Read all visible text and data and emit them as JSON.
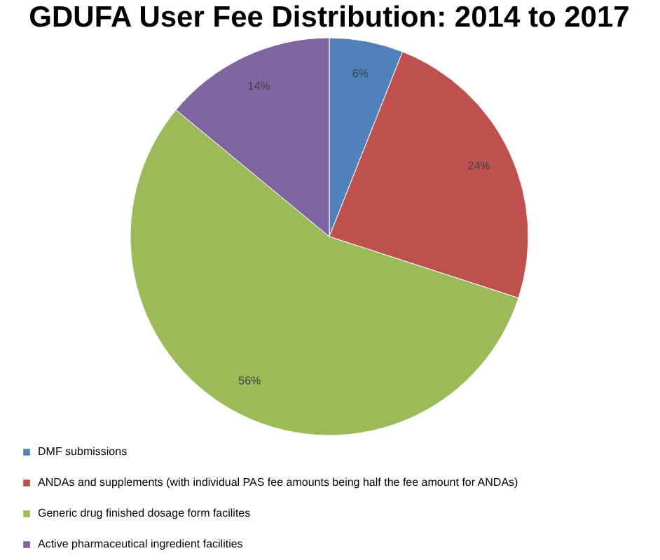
{
  "chart_data": {
    "type": "pie",
    "title": "GDUFA User Fee Distribution: 2014 to 2017",
    "categories": [
      "DMF submissions",
      "ANDAs and supplements (with individual PAS fee amounts being half the fee amount for ANDAs)",
      "Generic drug finished dosage form facilites",
      "Active pharmaceutical ingredient facilities"
    ],
    "values": [
      6,
      24,
      56,
      14
    ],
    "colors": [
      "#4f81bd",
      "#c0504d",
      "#9bbb59",
      "#8064a2"
    ],
    "value_labels": [
      "6%",
      "24%",
      "56%",
      "14%"
    ],
    "legend": "bottom"
  }
}
